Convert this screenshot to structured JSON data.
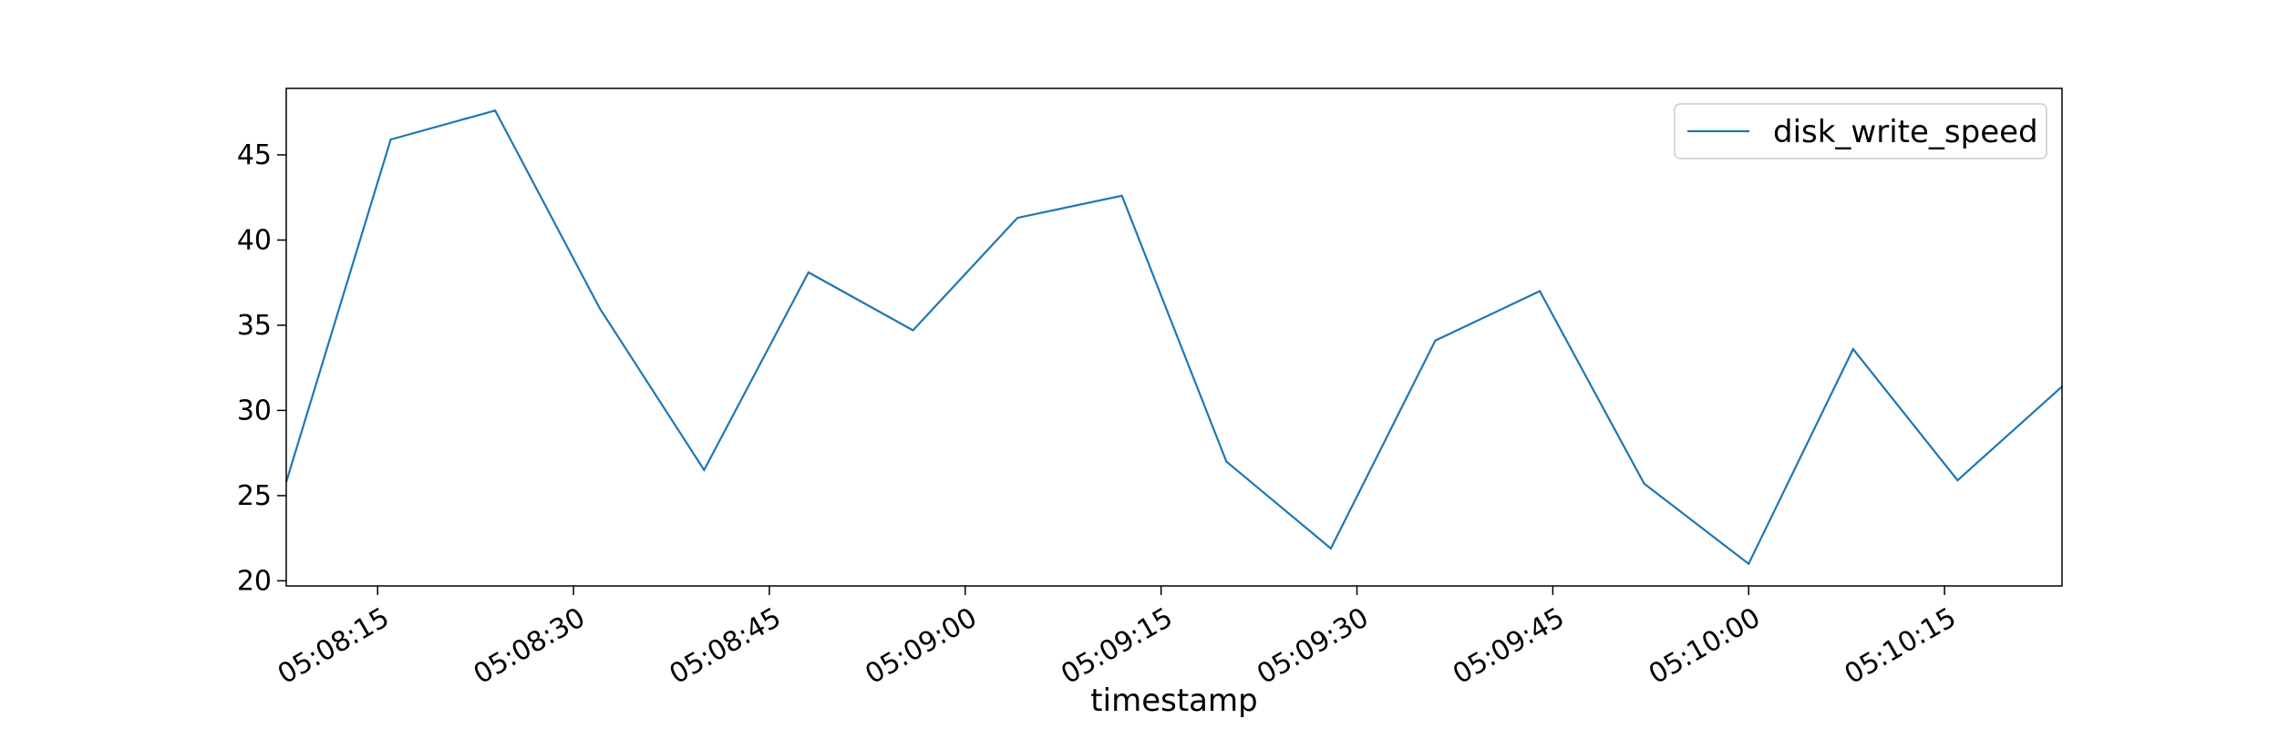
{
  "chart_data": {
    "type": "line",
    "xlabel": "timestamp",
    "ylabel": "",
    "x": [
      "05:08:08",
      "05:08:16",
      "05:08:24",
      "05:08:32",
      "05:08:40",
      "05:08:48",
      "05:08:56",
      "05:09:04",
      "05:09:12",
      "05:09:20",
      "05:09:28",
      "05:09:36",
      "05:09:44",
      "05:09:52",
      "05:10:00",
      "05:10:08",
      "05:10:16",
      "05:10:24"
    ],
    "series": [
      {
        "name": "disk_write_speed",
        "color": "#1f77b4",
        "values": [
          25.8,
          45.9,
          47.6,
          36.0,
          26.5,
          38.1,
          34.7,
          41.3,
          42.6,
          27.0,
          21.9,
          34.1,
          37.0,
          25.7,
          21.0,
          33.6,
          25.9,
          31.4
        ]
      }
    ],
    "xlim": [
      "05:08:08",
      "05:10:24"
    ],
    "ylim": [
      19.7,
      48.9
    ],
    "x_ticks": [
      "05:08:15",
      "05:08:30",
      "05:08:45",
      "05:09:00",
      "05:09:15",
      "05:09:30",
      "05:09:45",
      "05:10:00",
      "05:10:15"
    ],
    "y_ticks": [
      20,
      25,
      30,
      35,
      40,
      45
    ],
    "grid": false,
    "legend_position": "top-right"
  }
}
